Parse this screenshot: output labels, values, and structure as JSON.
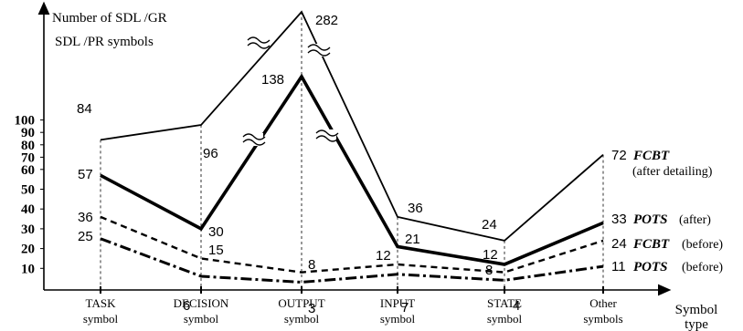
{
  "chart_data": {
    "type": "line",
    "ylabel_lines": [
      "Number of SDL /GR",
      "SDL /PR symbols"
    ],
    "xlabel_lines": [
      "Symbol",
      "type"
    ],
    "categories": [
      [
        "TASK",
        "symbol"
      ],
      [
        "DECISION",
        "symbol"
      ],
      [
        "OUTPUT",
        "symbol"
      ],
      [
        "INPUT",
        "symbol"
      ],
      [
        "STATE",
        "symbol"
      ],
      [
        "Other",
        "symbols"
      ]
    ],
    "yticks": [
      10,
      20,
      30,
      40,
      50,
      60,
      70,
      80,
      90,
      100
    ],
    "ylim": [
      0,
      100
    ],
    "axis_break": true,
    "grid": false,
    "series": [
      {
        "name": "FCBT",
        "note": "(after detailing)",
        "style": "solid-thin",
        "values": [
          84,
          96,
          282,
          36,
          24,
          72
        ],
        "labels": [
          "84",
          "96",
          "282",
          "36",
          "24",
          "72"
        ]
      },
      {
        "name": "POTS",
        "note": "(after)",
        "style": "solid-thick",
        "values": [
          57,
          30,
          138,
          21,
          12,
          33
        ],
        "labels": [
          "57",
          "30",
          "138",
          "21",
          "12",
          "33"
        ]
      },
      {
        "name": "FCBT",
        "note": "(before)",
        "style": "dashed",
        "values": [
          36,
          15,
          8,
          12,
          8,
          24
        ],
        "labels": [
          "36",
          "15",
          "8",
          "12",
          "8",
          "24"
        ]
      },
      {
        "name": "POTS",
        "note": "(before)",
        "style": "dash-dot",
        "values": [
          25,
          6,
          3,
          7,
          4,
          11
        ],
        "labels": [
          "25",
          "6",
          "3",
          "7",
          "4",
          "11"
        ]
      }
    ]
  }
}
